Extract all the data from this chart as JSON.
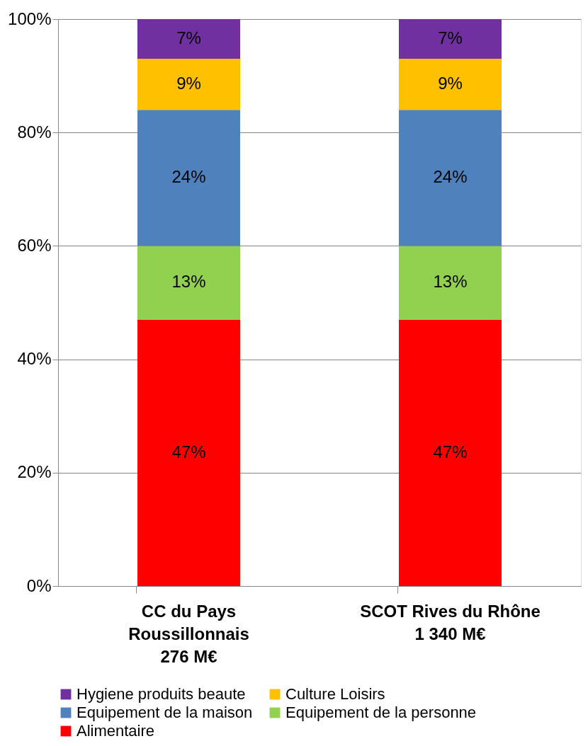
{
  "chart_data": {
    "type": "bar",
    "stacked": true,
    "grid": "y",
    "legend": "bottom",
    "categories": [
      "CC du Pays\nRoussillonnais\n276 M€",
      "SCOT Rives du Rhône\n1 340 M€"
    ],
    "ylim": [
      0,
      100
    ],
    "yticks": [
      {
        "value": 0,
        "label": "0%"
      },
      {
        "value": 20,
        "label": "20%"
      },
      {
        "value": 40,
        "label": "40%"
      },
      {
        "value": 60,
        "label": "60%"
      },
      {
        "value": 80,
        "label": "80%"
      },
      {
        "value": 100,
        "label": "100%"
      }
    ],
    "series": [
      {
        "name": "Alimentaire",
        "color": "#ff0000",
        "values": [
          47,
          47
        ],
        "value_labels": [
          "47%",
          "47%"
        ]
      },
      {
        "name": "Equipement de la personne",
        "color": "#92d050",
        "values": [
          13,
          13
        ],
        "value_labels": [
          "13%",
          "13%"
        ]
      },
      {
        "name": "Equipement de la maison",
        "color": "#4f81bd",
        "values": [
          24,
          24
        ],
        "value_labels": [
          "24%",
          "24%"
        ]
      },
      {
        "name": "Culture Loisirs",
        "color": "#ffc000",
        "values": [
          9,
          9
        ],
        "value_labels": [
          "9%",
          "9%"
        ]
      },
      {
        "name": "Hygiene produits beaute",
        "color": "#7030a0",
        "values": [
          7,
          7
        ],
        "value_labels": [
          "7%",
          "7%"
        ]
      }
    ]
  }
}
